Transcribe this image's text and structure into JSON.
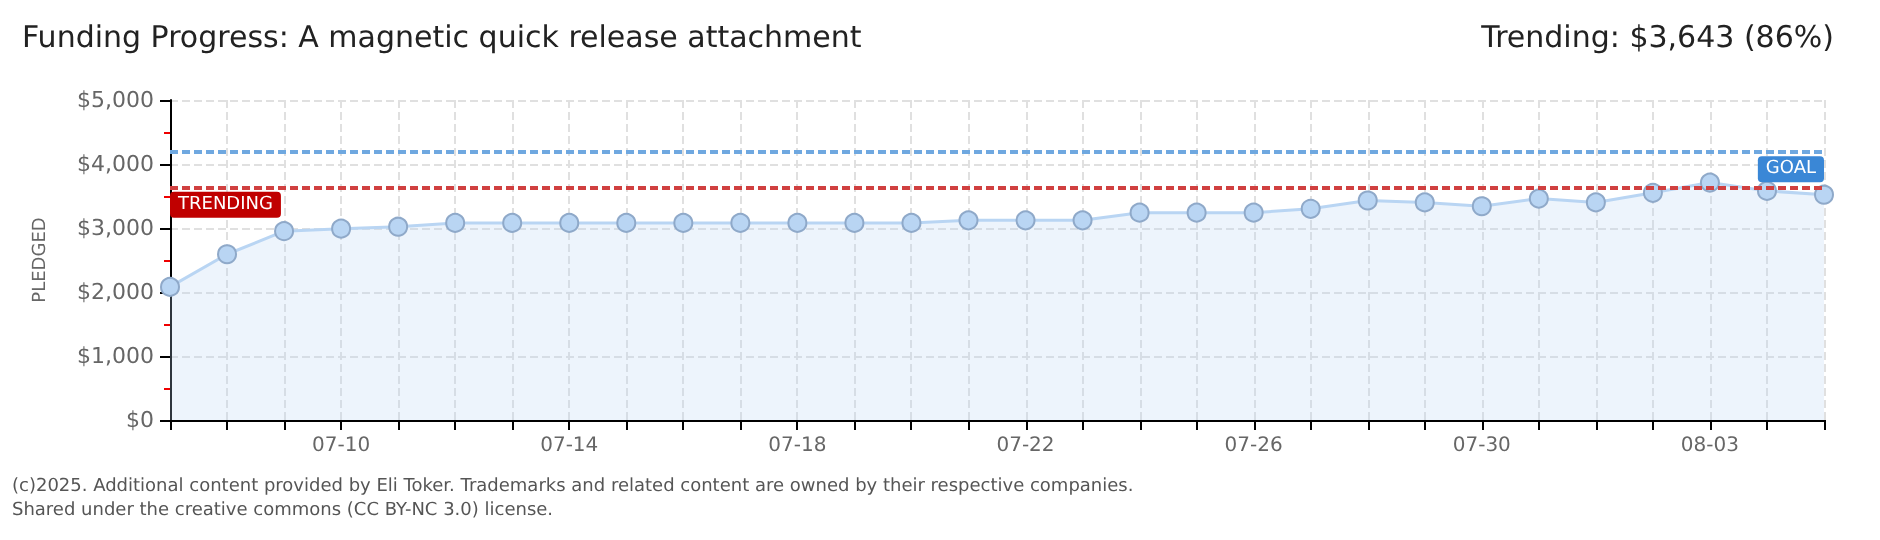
{
  "chart_data": {
    "type": "area",
    "title": "Funding Progress: A magnetic quick release attachment",
    "subtitle": "Trending: $3,643 (86%)",
    "ylabel": "PLEDGED",
    "categories": [
      null,
      null,
      null,
      "07-10",
      null,
      null,
      null,
      "07-14",
      null,
      null,
      null,
      "07-18",
      null,
      null,
      null,
      "07-22",
      null,
      null,
      null,
      "07-26",
      null,
      null,
      null,
      "07-30",
      null,
      null,
      null,
      "08-03",
      null,
      null
    ],
    "series": [
      {
        "color": "#b9d5f3",
        "values": [
          2080,
          2590,
          2950,
          2990,
          3020,
          3080,
          3080,
          3080,
          3080,
          3080,
          3080,
          3080,
          3080,
          3080,
          3120,
          3120,
          3120,
          3240,
          3240,
          3240,
          3300,
          3430,
          3400,
          3340,
          3460,
          3400,
          3550,
          3710,
          3580,
          3520
        ]
      }
    ],
    "ylim": [
      0,
      5000
    ],
    "yticks": [
      {
        "value": 0,
        "label": "$0"
      },
      {
        "value": 1000,
        "label": "$1,000"
      },
      {
        "value": 2000,
        "label": "$2,000"
      },
      {
        "value": 3000,
        "label": "$3,000"
      },
      {
        "value": 4000,
        "label": "$4,000"
      },
      {
        "value": 5000,
        "label": "$5,000"
      }
    ],
    "ref_lines": [
      {
        "axis": "y",
        "value": 4200,
        "label": "GOAL",
        "color": "#6fa8e0",
        "line_style": "dashed"
      },
      {
        "axis": "y",
        "value": 3643,
        "label": "TRENDING",
        "color": "#d04040",
        "line_style": "dashed"
      }
    ],
    "annotations": [
      "(c)2025. Additional content provided by Eli Toker. Trademarks and related content are owned by their respective companies.",
      "Shared under the creative commons (CC BY-NC 3.0) license."
    ],
    "grid": true,
    "marker": "circle"
  }
}
